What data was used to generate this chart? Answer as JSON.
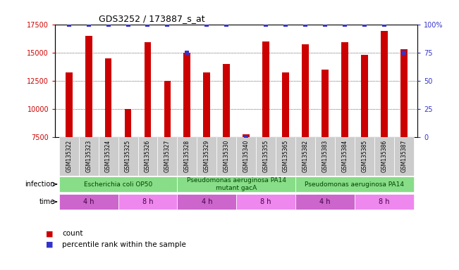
{
  "title": "GDS3252 / 173887_s_at",
  "samples": [
    "GSM135322",
    "GSM135323",
    "GSM135324",
    "GSM135325",
    "GSM135326",
    "GSM135327",
    "GSM135328",
    "GSM135329",
    "GSM135330",
    "GSM135340",
    "GSM135355",
    "GSM135365",
    "GSM135382",
    "GSM135383",
    "GSM135384",
    "GSM135385",
    "GSM135386",
    "GSM135387"
  ],
  "counts": [
    13200,
    16500,
    14500,
    10000,
    15900,
    12500,
    15000,
    13200,
    14000,
    7700,
    16000,
    13200,
    15700,
    13500,
    15900,
    14800,
    16900,
    15300
  ],
  "percentile_ranks": [
    100,
    100,
    100,
    100,
    100,
    100,
    75,
    100,
    100,
    0,
    100,
    100,
    100,
    100,
    100,
    100,
    100,
    75
  ],
  "bar_color": "#cc0000",
  "dot_color": "#3333cc",
  "ylim_left": [
    7500,
    17500
  ],
  "yticks_left": [
    7500,
    10000,
    12500,
    15000,
    17500
  ],
  "ylim_right": [
    0,
    100
  ],
  "yticks_right": [
    0,
    25,
    50,
    75,
    100
  ],
  "ytick_labels_right": [
    "0",
    "25",
    "50",
    "75",
    "100%"
  ],
  "infection_groups": [
    {
      "label": "Escherichia coli OP50",
      "start": 0,
      "end": 6,
      "color": "#88dd88"
    },
    {
      "label": "Pseudomonas aeruginosa PA14\nmutant gacA",
      "start": 6,
      "end": 12,
      "color": "#88dd88"
    },
    {
      "label": "Pseudomonas aeruginosa PA14",
      "start": 12,
      "end": 18,
      "color": "#88dd88"
    }
  ],
  "time_groups": [
    {
      "label": "4 h",
      "start": 0,
      "end": 3,
      "color": "#cc66cc"
    },
    {
      "label": "8 h",
      "start": 3,
      "end": 6,
      "color": "#ee88ee"
    },
    {
      "label": "4 h",
      "start": 6,
      "end": 9,
      "color": "#cc66cc"
    },
    {
      "label": "8 h",
      "start": 9,
      "end": 12,
      "color": "#ee88ee"
    },
    {
      "label": "4 h",
      "start": 12,
      "end": 15,
      "color": "#cc66cc"
    },
    {
      "label": "8 h",
      "start": 15,
      "end": 18,
      "color": "#ee88ee"
    }
  ],
  "infection_label_color": "#004400",
  "time_label_color": "#440044",
  "bar_width": 0.35,
  "background_color": "#ffffff",
  "sample_box_color": "#cccccc",
  "grid_color": "#000000"
}
